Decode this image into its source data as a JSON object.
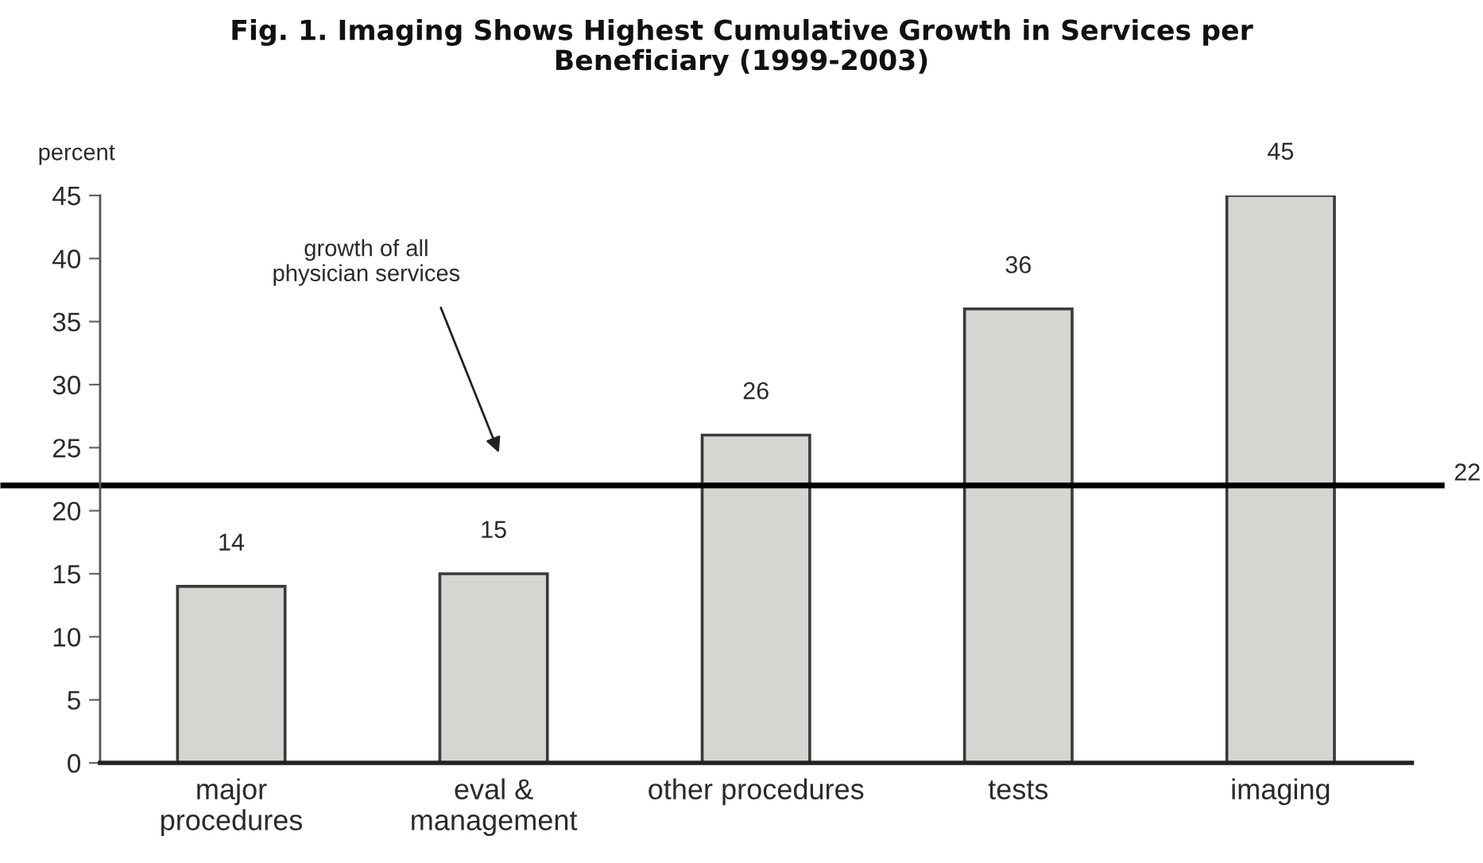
{
  "chart_data": {
    "type": "bar",
    "title": "Fig. 1. Imaging Shows Highest Cumulative Growth in Services per\nBeneficiary (1999-2003)",
    "ylabel": "percent",
    "categories": [
      "major\nprocedures",
      "eval &\nmanagement",
      "other procedures",
      "tests",
      "imaging"
    ],
    "values": [
      14,
      15,
      26,
      36,
      45
    ],
    "color": "#d5d5d1",
    "ylim": [
      0,
      45
    ],
    "yticks": [
      0,
      5,
      10,
      15,
      20,
      25,
      30,
      35,
      40,
      45
    ],
    "data_labels": true,
    "ref_lines": [
      {
        "axis": "y",
        "value": 22,
        "label": "22",
        "color": "#000000"
      }
    ],
    "annotations": [
      "growth of all\nphysician services"
    ]
  }
}
